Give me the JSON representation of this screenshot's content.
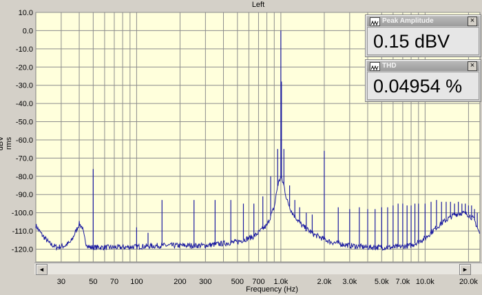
{
  "chart_data": {
    "type": "line",
    "title": "Left",
    "xlabel": "Frequency (Hz)",
    "ylabel": "dBV rms",
    "x_scale": "log",
    "xlim": [
      20,
      24000
    ],
    "ylim": [
      -127,
      10
    ],
    "grid": true,
    "y_ticks": [
      10,
      0,
      -10,
      -20,
      -30,
      -40,
      -50,
      -60,
      -70,
      -80,
      -90,
      -100,
      -110,
      -120
    ],
    "y_tick_labels": [
      "10.0",
      "0.0",
      "-10.0",
      "-20.0",
      "-30.0",
      "-40.0",
      "-50.0",
      "-60.0",
      "-70.0",
      "-80.0",
      "-90.0",
      "-100.0",
      "-110.0",
      "-120.0"
    ],
    "x_ticks": [
      30,
      50,
      70,
      100,
      200,
      300,
      500,
      700,
      1000,
      2000,
      3000,
      5000,
      7000,
      10000,
      20000
    ],
    "x_tick_labels": [
      "30",
      "50",
      "70",
      "100",
      "200",
      "300",
      "500",
      "700",
      "1.0k",
      "2.0k",
      "3.0k",
      "5.0k",
      "7.0k",
      "10.0k",
      "20.0k"
    ],
    "baseline": [
      [
        20,
        -107
      ],
      [
        22,
        -112
      ],
      [
        25,
        -117
      ],
      [
        28,
        -119
      ],
      [
        32,
        -118
      ],
      [
        35,
        -116
      ],
      [
        38,
        -110
      ],
      [
        40,
        -106
      ],
      [
        42,
        -108
      ],
      [
        44,
        -116
      ],
      [
        47,
        -119
      ],
      [
        55,
        -119
      ],
      [
        80,
        -119
      ],
      [
        150,
        -118
      ],
      [
        300,
        -118
      ],
      [
        500,
        -116
      ],
      [
        650,
        -113
      ],
      [
        800,
        -107
      ],
      [
        900,
        -97
      ],
      [
        950,
        -85
      ],
      [
        1000,
        -80
      ],
      [
        1050,
        -85
      ],
      [
        1100,
        -93
      ],
      [
        1200,
        -100
      ],
      [
        1400,
        -107
      ],
      [
        1700,
        -112
      ],
      [
        2200,
        -116
      ],
      [
        3000,
        -118
      ],
      [
        4000,
        -119
      ],
      [
        6000,
        -119
      ],
      [
        8000,
        -118
      ],
      [
        10000,
        -114
      ],
      [
        12000,
        -108
      ],
      [
        14000,
        -104
      ],
      [
        16000,
        -101
      ],
      [
        18000,
        -100
      ],
      [
        20000,
        -101
      ],
      [
        22000,
        -104
      ],
      [
        24000,
        -112
      ]
    ],
    "peaks": [
      [
        50,
        -76
      ],
      [
        100,
        -108
      ],
      [
        120,
        -111
      ],
      [
        150,
        -93
      ],
      [
        250,
        -93
      ],
      [
        350,
        -93
      ],
      [
        450,
        -93
      ],
      [
        550,
        -95
      ],
      [
        650,
        -95
      ],
      [
        750,
        -91
      ],
      [
        850,
        -80
      ],
      [
        950,
        -65
      ],
      [
        1000,
        0
      ],
      [
        1010,
        -28
      ],
      [
        1050,
        -65
      ],
      [
        1150,
        -85
      ],
      [
        1250,
        -93
      ],
      [
        1350,
        -97
      ],
      [
        1500,
        -100
      ],
      [
        1650,
        -101
      ],
      [
        2000,
        -66
      ],
      [
        2500,
        -97
      ],
      [
        3000,
        -98
      ],
      [
        3500,
        -97
      ],
      [
        4000,
        -98
      ],
      [
        4500,
        -98
      ],
      [
        5000,
        -97
      ],
      [
        5500,
        -97
      ],
      [
        6000,
        -96
      ],
      [
        6500,
        -95
      ],
      [
        7000,
        -95
      ],
      [
        7500,
        -96
      ],
      [
        8000,
        -96
      ],
      [
        8500,
        -95
      ],
      [
        9000,
        -95
      ],
      [
        10000,
        -95
      ],
      [
        11000,
        -94
      ],
      [
        12000,
        -93
      ],
      [
        13000,
        -94
      ],
      [
        14000,
        -94
      ],
      [
        15000,
        -94
      ],
      [
        16000,
        -95
      ],
      [
        17000,
        -94
      ],
      [
        18000,
        -95
      ],
      [
        19000,
        -95
      ],
      [
        20000,
        -96
      ],
      [
        21000,
        -96
      ],
      [
        22000,
        -98
      ],
      [
        23000,
        -100
      ]
    ],
    "line_color": "#1a1aa0",
    "plot_background": "#ffffdc",
    "grid_color": "#8c8c8c"
  },
  "meters": [
    {
      "title": "Peak Amplitude",
      "value": "0.15 dBV rms",
      "close": "×"
    },
    {
      "title": "THD",
      "value": "0.04954 %",
      "close": "×"
    }
  ],
  "scrollbar": {
    "left_arrow": "◄",
    "right_arrow": "►"
  }
}
